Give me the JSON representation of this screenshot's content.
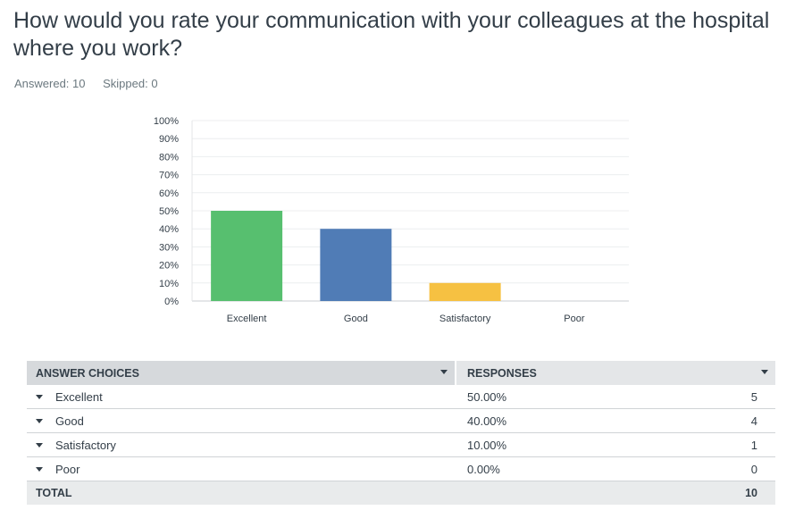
{
  "question": {
    "title": "How would you rate your communication with your colleagues at the hospital where you work?",
    "answered": "Answered: 10",
    "skipped": "Skipped: 0"
  },
  "chart_data": {
    "type": "bar",
    "categories": [
      "Excellent",
      "Good",
      "Satisfactory",
      "Poor"
    ],
    "values": [
      50,
      40,
      10,
      0
    ],
    "colors": [
      "#57bf6f",
      "#507cb6",
      "#f6c142",
      "#dadada"
    ],
    "ylim": [
      0,
      100
    ],
    "yticks": [
      "0%",
      "10%",
      "20%",
      "30%",
      "40%",
      "50%",
      "60%",
      "70%",
      "80%",
      "90%",
      "100%"
    ],
    "grid": true
  },
  "table": {
    "headers": {
      "choices": "ANSWER CHOICES",
      "responses": "RESPONSES"
    },
    "rows": [
      {
        "choice": "Excellent",
        "percent": "50.00%",
        "count": "5"
      },
      {
        "choice": "Good",
        "percent": "40.00%",
        "count": "4"
      },
      {
        "choice": "Satisfactory",
        "percent": "10.00%",
        "count": "1"
      },
      {
        "choice": "Poor",
        "percent": "0.00%",
        "count": "0"
      }
    ],
    "total_label": "TOTAL",
    "total_value": "10"
  }
}
